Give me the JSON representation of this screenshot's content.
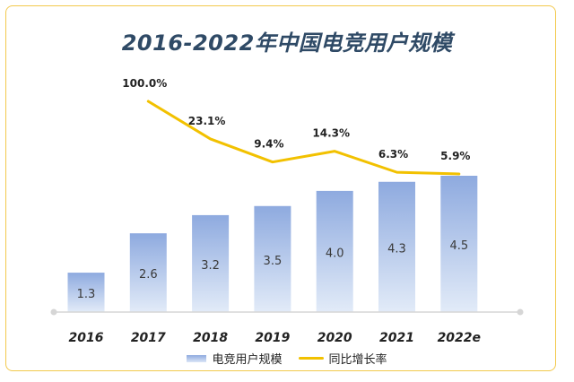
{
  "colors": {
    "frame": "#f2c94c",
    "bar_top": "#8eaadf",
    "bar_bottom": "#e2ebf8",
    "line": "#f2c100",
    "title": "#2f4a66",
    "axis": "#d6d6d6"
  },
  "chart_data": {
    "type": "bar",
    "title": "2016-2022年中国电竞用户规模",
    "categories": [
      "2016",
      "2017",
      "2018",
      "2019",
      "2020",
      "2021",
      "2022e"
    ],
    "series": [
      {
        "name": "电竞用户规模",
        "type": "bar",
        "values": [
          1.3,
          2.6,
          3.2,
          3.5,
          4.0,
          4.3,
          4.5
        ],
        "labels": [
          "1.3",
          "2.6",
          "3.2",
          "3.5",
          "4.0",
          "4.3",
          "4.5"
        ]
      },
      {
        "name": "同比增长率",
        "type": "line",
        "values": [
          100.0,
          23.1,
          9.4,
          14.3,
          6.3,
          5.9
        ],
        "x": [
          "2017",
          "2018",
          "2019",
          "2020",
          "2021",
          "2022e"
        ],
        "labels": [
          "100.0%",
          "23.1%",
          "9.4%",
          "14.3%",
          "6.3%",
          "5.9%"
        ]
      }
    ],
    "legend_position": "bottom-center",
    "grid": false
  }
}
